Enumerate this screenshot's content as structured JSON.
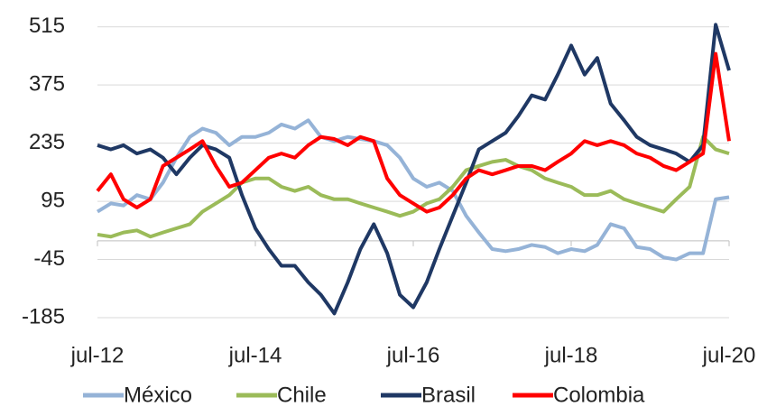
{
  "chart_data": {
    "type": "line",
    "x": [
      2012.5,
      2012.67,
      2012.83,
      2013,
      2013.17,
      2013.33,
      2013.5,
      2013.67,
      2013.83,
      2014,
      2014.17,
      2014.33,
      2014.5,
      2014.67,
      2014.83,
      2015,
      2015.17,
      2015.33,
      2015.5,
      2015.67,
      2015.83,
      2016,
      2016.17,
      2016.33,
      2016.5,
      2016.67,
      2016.83,
      2017,
      2017.17,
      2017.33,
      2017.5,
      2017.67,
      2017.83,
      2018,
      2018.17,
      2018.33,
      2018.5,
      2018.67,
      2018.83,
      2019,
      2019.17,
      2019.33,
      2019.5,
      2019.67,
      2019.83,
      2020,
      2020.17,
      2020.33,
      2020.5
    ],
    "xlim": [
      2012.5,
      2020.5
    ],
    "xticks": [
      {
        "value": 2012.5,
        "label": "jul-12"
      },
      {
        "value": 2014.5,
        "label": "jul-14"
      },
      {
        "value": 2016.5,
        "label": "jul-16"
      },
      {
        "value": 2018.5,
        "label": "jul-18"
      },
      {
        "value": 2020.5,
        "label": "jul-20"
      }
    ],
    "ylim": [
      -185,
      560
    ],
    "yticks": [
      -185,
      -45,
      95,
      235,
      375,
      515
    ],
    "grid": true,
    "legend": "bottom",
    "series": [
      {
        "name": "México",
        "color": "#95b3d7",
        "values": [
          70,
          90,
          85,
          110,
          100,
          140,
          200,
          250,
          270,
          260,
          230,
          250,
          250,
          260,
          280,
          270,
          290,
          250,
          240,
          250,
          245,
          240,
          230,
          200,
          150,
          130,
          140,
          120,
          60,
          20,
          -20,
          -25,
          -20,
          -10,
          -15,
          -30,
          -20,
          -25,
          -10,
          40,
          30,
          -15,
          -20,
          -40,
          -45,
          -30,
          -30,
          100,
          105
        ]
      },
      {
        "name": "Chile",
        "color": "#9bbb59",
        "values": [
          15,
          10,
          20,
          25,
          10,
          20,
          30,
          40,
          70,
          90,
          110,
          140,
          150,
          150,
          130,
          120,
          130,
          110,
          100,
          100,
          90,
          80,
          70,
          60,
          70,
          90,
          100,
          130,
          170,
          180,
          190,
          195,
          180,
          170,
          150,
          140,
          130,
          110,
          110,
          120,
          100,
          90,
          80,
          70,
          100,
          130,
          250,
          220,
          210
        ]
      },
      {
        "name": "Brasil",
        "color": "#1f3864",
        "values": [
          230,
          220,
          230,
          210,
          220,
          200,
          160,
          200,
          230,
          220,
          200,
          110,
          30,
          -20,
          -60,
          -60,
          -100,
          -130,
          -175,
          -100,
          -20,
          40,
          -30,
          -130,
          -160,
          -100,
          -20,
          60,
          140,
          220,
          240,
          260,
          300,
          350,
          340,
          400,
          470,
          400,
          440,
          330,
          290,
          250,
          230,
          220,
          210,
          190,
          230,
          520,
          410
        ]
      },
      {
        "name": "Colombia",
        "color": "#ff0000",
        "values": [
          120,
          160,
          100,
          80,
          100,
          180,
          200,
          220,
          240,
          180,
          130,
          140,
          170,
          200,
          210,
          200,
          230,
          250,
          245,
          230,
          250,
          240,
          150,
          110,
          90,
          70,
          80,
          110,
          150,
          170,
          160,
          170,
          180,
          180,
          170,
          190,
          210,
          240,
          230,
          240,
          230,
          210,
          200,
          180,
          170,
          190,
          210,
          450,
          240
        ]
      }
    ]
  }
}
